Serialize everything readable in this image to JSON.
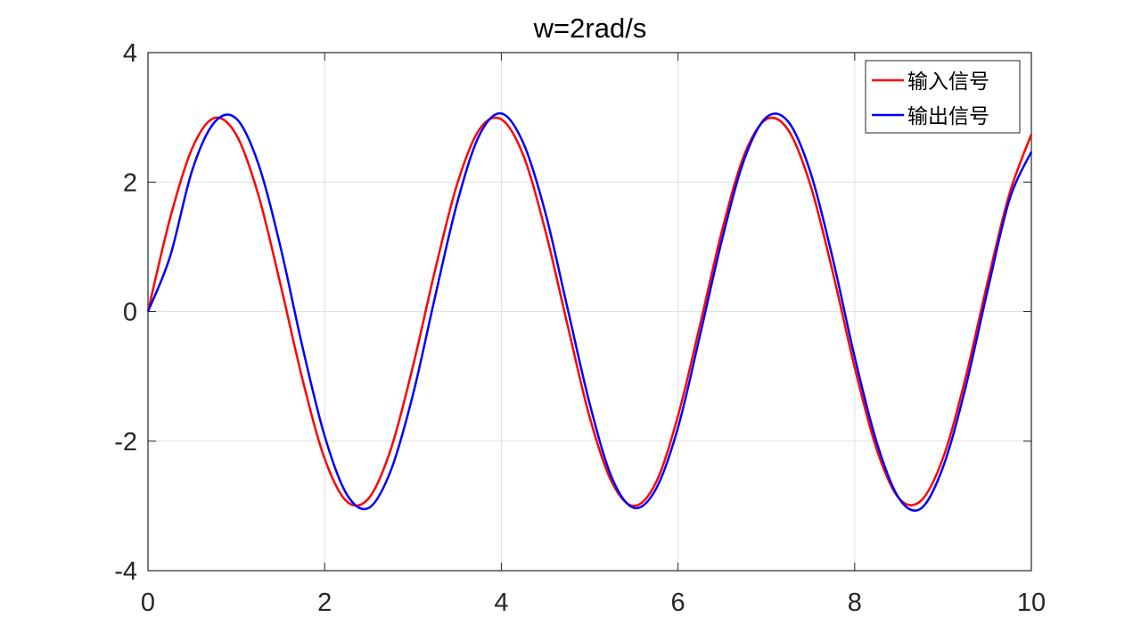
{
  "chart_data": {
    "type": "line",
    "title": "w=2rad/s",
    "xlabel": "",
    "ylabel": "",
    "xlim": [
      0,
      10
    ],
    "ylim": [
      -4,
      4
    ],
    "xticks": [
      0,
      2,
      4,
      6,
      8,
      10
    ],
    "yticks": [
      -4,
      -2,
      0,
      2,
      4
    ],
    "xtick_labels": [
      "0",
      "2",
      "4",
      "6",
      "8",
      "10"
    ],
    "ytick_labels": [
      "-4",
      "-2",
      "0",
      "2",
      "4"
    ],
    "grid": true,
    "legend_position": "top-right",
    "x": [
      0,
      0.25,
      0.5,
      0.75,
      1.0,
      1.25,
      1.5,
      1.75,
      2.0,
      2.25,
      2.5,
      2.75,
      3.0,
      3.25,
      3.5,
      3.75,
      4.0,
      4.25,
      4.5,
      4.75,
      5.0,
      5.25,
      5.5,
      5.75,
      6.0,
      6.25,
      6.5,
      6.75,
      7.0,
      7.25,
      7.5,
      7.75,
      8.0,
      8.25,
      8.5,
      8.75,
      9.0,
      9.25,
      9.5,
      9.75,
      10.0
    ],
    "series": [
      {
        "name": "输入信号",
        "color": "#ff0000",
        "values": [
          0,
          1.44,
          2.52,
          2.99,
          2.73,
          1.8,
          0.42,
          -1.05,
          -2.27,
          -2.93,
          -2.88,
          -2.12,
          -0.84,
          0.64,
          1.97,
          2.81,
          2.97,
          2.41,
          1.24,
          -0.21,
          -1.63,
          -2.63,
          -3.0,
          -2.64,
          -1.61,
          -0.2,
          1.26,
          2.42,
          2.97,
          2.8,
          1.95,
          0.62,
          -0.86,
          -2.13,
          -2.88,
          -2.92,
          -2.26,
          -1.05,
          0.43,
          1.81,
          2.74
        ]
      },
      {
        "name": "输出信号",
        "color": "#0000ff",
        "values": [
          0,
          0.85,
          2.18,
          2.92,
          2.98,
          2.28,
          1.0,
          -0.55,
          -1.92,
          -2.82,
          -3.03,
          -2.45,
          -1.28,
          0.23,
          1.68,
          2.72,
          3.06,
          2.6,
          1.52,
          0.05,
          -1.42,
          -2.56,
          -3.03,
          -2.74,
          -1.79,
          -0.36,
          1.12,
          2.35,
          3.0,
          2.93,
          2.15,
          0.83,
          -0.7,
          -2.02,
          -2.88,
          -3.04,
          -2.4,
          -1.2,
          0.3,
          1.72,
          2.47
        ]
      }
    ]
  }
}
